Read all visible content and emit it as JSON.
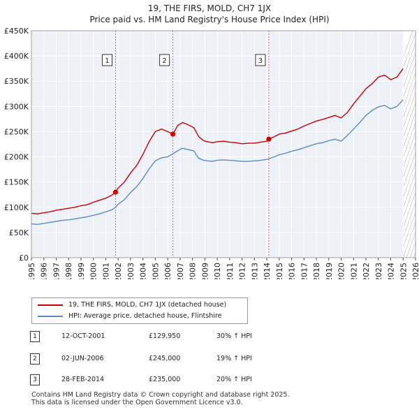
{
  "title_line1": "19, THE FIRS, MOLD, CH7 1JX",
  "title_line2": "Price paid vs. HM Land Registry's House Price Index (HPI)",
  "chart_data": {
    "type": "line",
    "x_range": [
      1995,
      2026
    ],
    "ylim": [
      0,
      450000
    ],
    "y_ticks": [
      {
        "value": 0,
        "label": "£0"
      },
      {
        "value": 50000,
        "label": "£50K"
      },
      {
        "value": 100000,
        "label": "£100K"
      },
      {
        "value": 150000,
        "label": "£150K"
      },
      {
        "value": 200000,
        "label": "£200K"
      },
      {
        "value": 250000,
        "label": "£250K"
      },
      {
        "value": 300000,
        "label": "£300K"
      },
      {
        "value": 350000,
        "label": "£350K"
      },
      {
        "value": 400000,
        "label": "£400K"
      },
      {
        "value": 450000,
        "label": "£450K"
      }
    ],
    "x_ticks": [
      "1995",
      "1996",
      "1997",
      "1998",
      "1999",
      "2000",
      "2001",
      "2002",
      "2003",
      "2004",
      "2005",
      "2006",
      "2007",
      "2008",
      "2009",
      "2010",
      "2011",
      "2012",
      "2013",
      "2014",
      "2015",
      "2016",
      "2017",
      "2018",
      "2019",
      "2020",
      "2021",
      "2022",
      "2023",
      "2024",
      "2025",
      "2026"
    ],
    "forecast_from": 2025.0,
    "series": [
      {
        "name": "19, THE FIRS, MOLD, CH7 1JX (detached house)",
        "color": "#cc0000",
        "x": [
          1995.0,
          1995.5,
          1996.0,
          1996.5,
          1997.0,
          1997.5,
          1998.0,
          1998.5,
          1999.0,
          1999.5,
          2000.0,
          2000.5,
          2001.0,
          2001.5,
          2001.79,
          2002.0,
          2002.5,
          2003.0,
          2003.5,
          2004.0,
          2004.5,
          2005.0,
          2005.5,
          2006.0,
          2006.42,
          2006.8,
          2007.2,
          2007.7,
          2008.1,
          2008.5,
          2008.9,
          2009.2,
          2009.6,
          2010.0,
          2010.5,
          2011.0,
          2011.5,
          2012.0,
          2012.5,
          2013.0,
          2013.5,
          2014.0,
          2014.16,
          2014.6,
          2015.0,
          2015.5,
          2016.0,
          2016.5,
          2017.0,
          2017.5,
          2018.0,
          2018.5,
          2019.0,
          2019.5,
          2020.0,
          2020.5,
          2021.0,
          2021.5,
          2022.0,
          2022.5,
          2023.0,
          2023.5,
          2024.0,
          2024.5,
          2025.0
        ],
        "values": [
          88000,
          87000,
          89000,
          91000,
          94000,
          96000,
          98000,
          100000,
          103000,
          105000,
          110000,
          114000,
          118000,
          124000,
          129950,
          138000,
          150000,
          168000,
          183000,
          205000,
          230000,
          250000,
          255000,
          250000,
          245000,
          262000,
          268000,
          263000,
          258000,
          240000,
          232000,
          230000,
          228000,
          230000,
          231000,
          229000,
          228000,
          226000,
          227000,
          227000,
          229000,
          231000,
          235000,
          240000,
          245000,
          247000,
          251000,
          255000,
          261000,
          266000,
          271000,
          274000,
          278000,
          282000,
          277000,
          288000,
          305000,
          320000,
          335000,
          345000,
          358000,
          362000,
          353000,
          358000,
          375000
        ]
      },
      {
        "name": "HPI: Average price, detached house, Flintshire",
        "color": "#5b8bc7",
        "x": [
          1995.0,
          1995.5,
          1996.0,
          1996.5,
          1997.0,
          1997.5,
          1998.0,
          1998.5,
          1999.0,
          1999.5,
          2000.0,
          2000.5,
          2001.0,
          2001.5,
          2001.79,
          2002.0,
          2002.5,
          2003.0,
          2003.5,
          2004.0,
          2004.5,
          2005.0,
          2005.5,
          2006.0,
          2006.42,
          2006.8,
          2007.2,
          2007.7,
          2008.1,
          2008.5,
          2008.9,
          2009.2,
          2009.6,
          2010.0,
          2010.5,
          2011.0,
          2011.5,
          2012.0,
          2012.5,
          2013.0,
          2013.5,
          2014.0,
          2014.16,
          2014.6,
          2015.0,
          2015.5,
          2016.0,
          2016.5,
          2017.0,
          2017.5,
          2018.0,
          2018.5,
          2019.0,
          2019.5,
          2020.0,
          2020.5,
          2021.0,
          2021.5,
          2022.0,
          2022.5,
          2023.0,
          2023.5,
          2024.0,
          2024.5,
          2025.0
        ],
        "values": [
          67000,
          66000,
          68000,
          70000,
          72000,
          74000,
          75000,
          77000,
          79000,
          81000,
          84000,
          87000,
          91000,
          95000,
          100000,
          106000,
          115000,
          129000,
          141000,
          157000,
          176000,
          192000,
          198000,
          200000,
          206000,
          212000,
          217000,
          214000,
          212000,
          197000,
          193000,
          192000,
          191000,
          193000,
          194000,
          193000,
          192000,
          191000,
          191000,
          192000,
          193000,
          195000,
          196000,
          200000,
          204000,
          207000,
          211000,
          214000,
          218000,
          222000,
          226000,
          228000,
          232000,
          235000,
          231000,
          242000,
          255000,
          268000,
          282000,
          292000,
          299000,
          302000,
          295000,
          300000,
          313000
        ]
      }
    ],
    "sales": [
      {
        "num": "1",
        "x": 2001.79,
        "value": 129950
      },
      {
        "num": "2",
        "x": 2006.42,
        "value": 245000
      },
      {
        "num": "3",
        "x": 2014.16,
        "value": 235000
      }
    ]
  },
  "legend": {
    "item1": "19, THE FIRS, MOLD, CH7 1JX (detached house)",
    "item2": "HPI: Average price, detached house, Flintshire"
  },
  "sales_table": [
    {
      "num": "1",
      "date": "12-OCT-2001",
      "price": "£129,950",
      "hpi": "30% ↑ HPI"
    },
    {
      "num": "2",
      "date": "02-JUN-2006",
      "price": "£245,000",
      "hpi": "19% ↑ HPI"
    },
    {
      "num": "3",
      "date": "28-FEB-2014",
      "price": "£235,000",
      "hpi": "20% ↑ HPI"
    }
  ],
  "footer": {
    "line1": "Contains HM Land Registry data © Crown copyright and database right 2025.",
    "line2": "This data is licensed under the Open Government Licence v3.0."
  }
}
